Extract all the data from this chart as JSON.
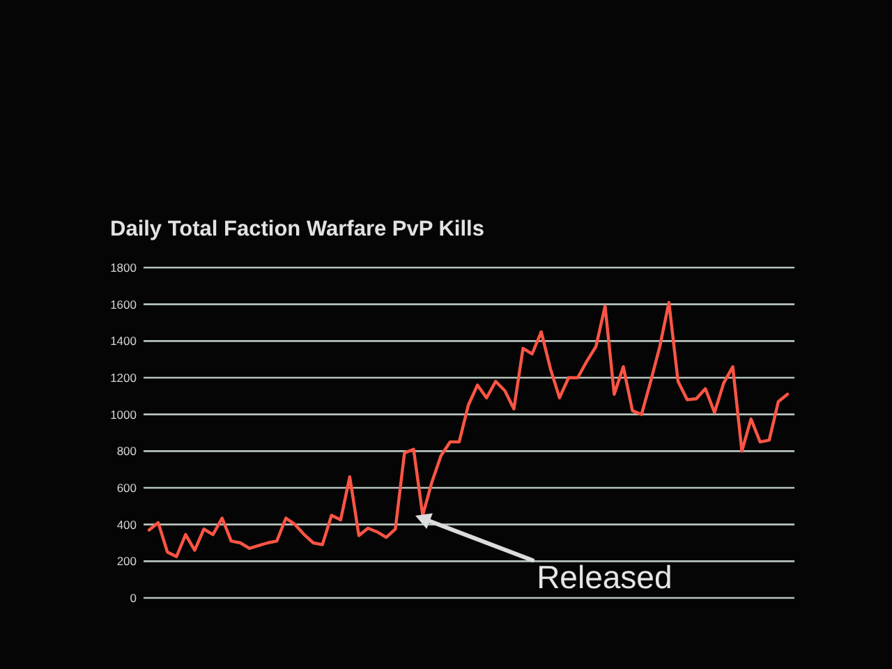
{
  "chart_data": {
    "type": "line",
    "title": "Daily Total Faction Warfare PvP Kills",
    "categories": [
      null,
      null,
      null,
      null,
      null,
      null,
      null,
      null,
      null,
      null,
      null,
      null,
      null,
      null,
      null,
      null,
      null,
      null,
      null,
      null,
      null,
      null,
      null,
      null,
      null,
      null,
      null,
      null,
      null,
      null,
      null,
      null,
      null,
      null,
      null,
      null,
      null,
      null,
      null,
      null,
      null,
      null,
      null,
      null,
      null,
      null,
      null,
      null,
      null,
      null,
      null,
      null,
      null,
      null,
      null,
      null,
      null,
      null,
      null,
      null,
      null,
      null,
      null,
      null,
      null,
      null,
      null,
      null,
      null,
      null,
      null
    ],
    "series": [
      {
        "color": "#ff5544",
        "values": [
          370,
          410,
          250,
          225,
          345,
          260,
          375,
          345,
          435,
          310,
          300,
          270,
          285,
          300,
          310,
          435,
          400,
          345,
          300,
          290,
          450,
          425,
          660,
          340,
          380,
          360,
          330,
          375,
          790,
          810,
          450,
          630,
          775,
          850,
          850,
          1050,
          1160,
          1090,
          1180,
          1130,
          1030,
          1360,
          1330,
          1450,
          1250,
          1090,
          1200,
          1200,
          1290,
          1370,
          1590,
          1110,
          1260,
          1020,
          1000,
          1180,
          1370,
          1610,
          1180,
          1080,
          1085,
          1140,
          1010,
          1170,
          1260,
          800,
          975,
          850,
          860,
          1070,
          1110
        ]
      }
    ],
    "ylim": [
      0,
      1800
    ],
    "yticks": [
      0,
      200,
      400,
      600,
      800,
      1000,
      1200,
      1400,
      1600,
      1800
    ],
    "grid": "y",
    "tick_labels": "y",
    "line_style": "solid",
    "annotations": [
      "Released"
    ]
  }
}
